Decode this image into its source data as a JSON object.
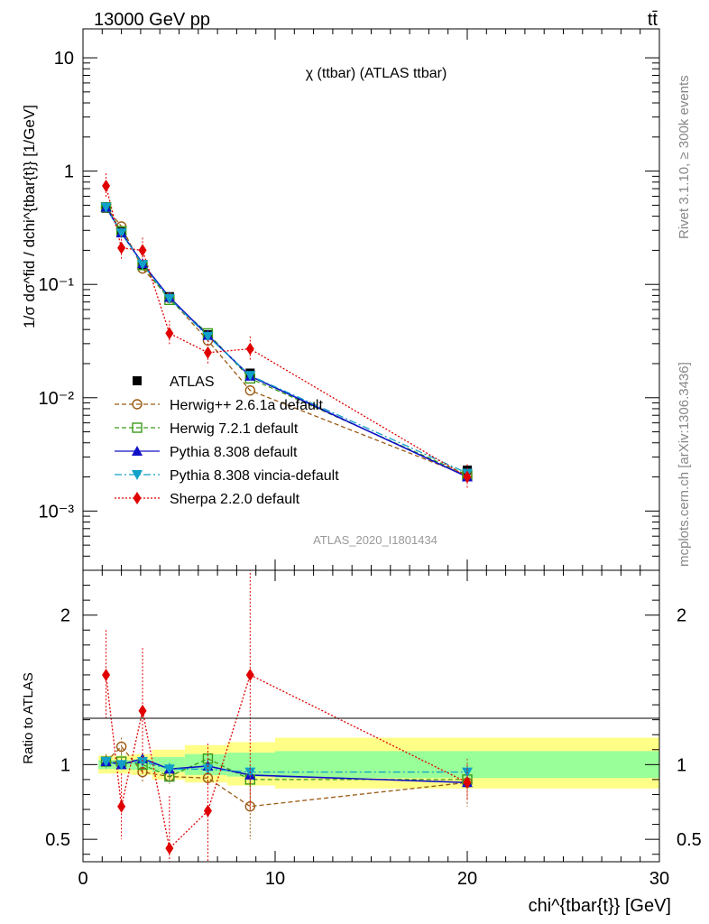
{
  "header": {
    "energy_label": "13000 GeV pp",
    "process_label": "tt̄",
    "rivet_label": "Rivet 3.1.10, ≥ 300k events",
    "source_label": "mcplots.cern.ch [arXiv:1306.3436]",
    "analysis_id": "ATLAS_2020_I1801434"
  },
  "chart_data": [
    {
      "panel": "main",
      "type": "line",
      "title": "χ (ttbar) (ATLAS ttbar)",
      "ylabel": "1/σ dσ^fid / dchi^{tbar{t}} [1/GeV]",
      "yscale": "log",
      "ylim": [
        0.0003,
        18
      ],
      "xlim": [
        0,
        30
      ],
      "y_ticks": [
        {
          "value": 10,
          "label": "10"
        },
        {
          "value": 1,
          "label": "1"
        },
        {
          "value": 0.1,
          "label": "10⁻¹"
        },
        {
          "value": 0.01,
          "label": "10⁻²"
        },
        {
          "value": 0.001,
          "label": "10⁻³"
        }
      ],
      "x": [
        1.2,
        2.0,
        3.1,
        4.5,
        6.5,
        8.7,
        20.0
      ],
      "series": [
        {
          "name": "ATLAS",
          "color": "#000000",
          "marker": "square-filled",
          "dash": "",
          "values": [
            0.47,
            0.29,
            0.148,
            0.078,
            0.036,
            0.0165,
            0.0023
          ]
        },
        {
          "name": "Herwig++ 2.6.1a default",
          "color": "#9a5a14",
          "marker": "circle-open",
          "dash": "5,3",
          "values": [
            0.48,
            0.325,
            0.138,
            0.076,
            0.032,
            0.0116,
            0.00205
          ]
        },
        {
          "name": "Herwig 7.2.1 default",
          "color": "#3a9a1a",
          "marker": "square-open",
          "dash": "5,3",
          "values": [
            0.48,
            0.295,
            0.148,
            0.073,
            0.037,
            0.0148,
            0.00208
          ]
        },
        {
          "name": "Pythia 8.308 default",
          "color": "#1010c8",
          "marker": "triangle-up",
          "dash": "",
          "values": [
            0.48,
            0.285,
            0.153,
            0.077,
            0.0355,
            0.0155,
            0.002
          ]
        },
        {
          "name": "Pythia 8.308 vincia-default",
          "color": "#10a0c8",
          "marker": "triangle-down",
          "dash": "8,3,2,3",
          "values": [
            0.48,
            0.285,
            0.15,
            0.075,
            0.0348,
            0.0157,
            0.00216
          ]
        },
        {
          "name": "Sherpa 2.2.0 default",
          "color": "#e00000",
          "marker": "diamond-filled",
          "dash": "2,2",
          "values": [
            0.74,
            0.21,
            0.2,
            0.037,
            0.025,
            0.027,
            0.002
          ]
        }
      ]
    },
    {
      "panel": "ratio",
      "type": "line",
      "ylabel": "Ratio to ATLAS",
      "yscale": "linear",
      "ylim": [
        0.35,
        2.3
      ],
      "xlim": [
        0,
        30
      ],
      "xlabel": "chi^{tbar{t}} [GeV]",
      "x_ticks": [
        0,
        10,
        20,
        30
      ],
      "y_ticks": [
        0.5,
        1,
        2
      ],
      "x": [
        1.2,
        2.0,
        3.1,
        4.5,
        6.5,
        8.7,
        20.0
      ],
      "bands": [
        {
          "x_range": [
            0.8,
            1.6
          ],
          "inner": [
            0.97,
            1.03
          ],
          "outer": [
            0.94,
            1.06
          ]
        },
        {
          "x_range": [
            1.6,
            2.5
          ],
          "inner": [
            0.97,
            1.03
          ],
          "outer": [
            0.94,
            1.06
          ]
        },
        {
          "x_range": [
            2.5,
            3.6
          ],
          "inner": [
            0.965,
            1.035
          ],
          "outer": [
            0.93,
            1.07
          ]
        },
        {
          "x_range": [
            3.6,
            5.3
          ],
          "inner": [
            0.95,
            1.05
          ],
          "outer": [
            0.9,
            1.1
          ]
        },
        {
          "x_range": [
            5.3,
            7.5
          ],
          "inner": [
            0.93,
            1.07
          ],
          "outer": [
            0.88,
            1.13
          ]
        },
        {
          "x_range": [
            7.5,
            10.0
          ],
          "inner": [
            0.92,
            1.08
          ],
          "outer": [
            0.86,
            1.15
          ]
        },
        {
          "x_range": [
            10.0,
            30.0
          ],
          "inner": [
            0.91,
            1.09
          ],
          "outer": [
            0.84,
            1.18
          ]
        }
      ],
      "series": [
        {
          "name": "Herwig++ 2.6.1a default",
          "values": [
            1.02,
            1.12,
            0.95,
            0.92,
            0.91,
            0.72,
            0.88
          ],
          "err": [
            0.05,
            0.06,
            0.07,
            0.05,
            0.06,
            0.22,
            0.16
          ]
        },
        {
          "name": "Herwig 7.2.1 default",
          "values": [
            1.02,
            1.02,
            1.0,
            0.92,
            1.04,
            0.9,
            0.9
          ],
          "err": [
            0.04,
            0.05,
            0.05,
            0.04,
            0.05,
            0.06,
            0.06
          ]
        },
        {
          "name": "Pythia 8.308 default",
          "values": [
            1.02,
            1.0,
            1.04,
            0.97,
            0.99,
            0.93,
            0.88
          ],
          "err": [
            0.03,
            0.03,
            0.04,
            0.04,
            0.04,
            0.04,
            0.04
          ]
        },
        {
          "name": "Pythia 8.308 vincia-default",
          "values": [
            1.02,
            1.0,
            1.02,
            0.97,
            0.97,
            0.95,
            0.95
          ],
          "err": [
            0.03,
            0.03,
            0.04,
            0.04,
            0.04,
            0.04,
            0.04
          ]
        },
        {
          "name": "Sherpa 2.2.0 default",
          "values": [
            1.6,
            0.72,
            1.36,
            0.44,
            0.69,
            1.6,
            0.88
          ],
          "err": [
            0.3,
            0.22,
            0.42,
            0.35,
            0.45,
            0.9,
            0.12
          ]
        }
      ]
    }
  ]
}
